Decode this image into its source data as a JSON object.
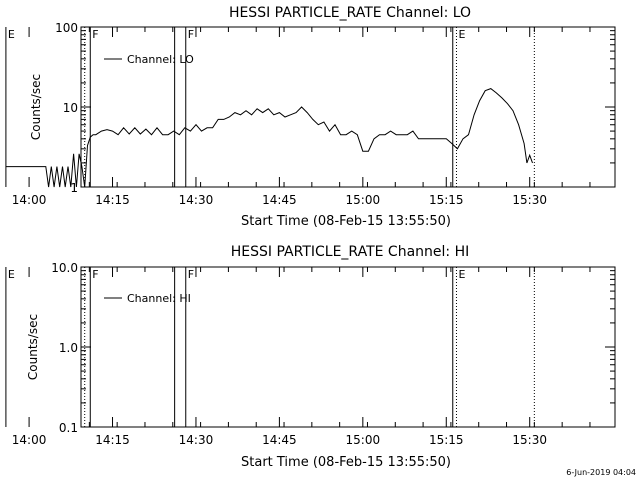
{
  "footer": {
    "timestamp": "6-Jun-2019 04:04"
  },
  "chart_data": [
    {
      "type": "line",
      "title": "HESSI PARTICLE_RATE Channel: LO",
      "xlabel": "Start Time (08-Feb-15 13:55:50)",
      "ylabel": "Counts/sec",
      "yscale": "log",
      "ylim": [
        1,
        100
      ],
      "xlim_minutes": [
        13.5,
        109.5
      ],
      "yticks": [
        {
          "value": 1,
          "label": "1"
        },
        {
          "value": 10,
          "label": "10"
        },
        {
          "value": 100,
          "label": "100"
        }
      ],
      "xticks": [
        {
          "label": "14:00"
        },
        {
          "label": "14:15"
        },
        {
          "label": "14:30"
        },
        {
          "label": "14:45"
        },
        {
          "label": "15:00"
        },
        {
          "label": "15:15"
        },
        {
          "label": "15:30"
        }
      ],
      "legend": {
        "label": "Channel: LO",
        "position": "top-left"
      },
      "markers": [
        {
          "time": "13:55:50",
          "label": "E",
          "style": "solid"
        },
        {
          "time": "14:10:00",
          "label": "",
          "style": "dotted"
        },
        {
          "time": "14:11:00",
          "label": "F",
          "style": "solid"
        },
        {
          "time": "14:26:10",
          "label": "",
          "style": "solid"
        },
        {
          "time": "14:28:10",
          "label": "F",
          "style": "solid"
        },
        {
          "time": "15:16:10",
          "label": "",
          "style": "solid"
        },
        {
          "time": "15:16:50",
          "label": "E",
          "style": "dotted"
        },
        {
          "time": "15:30:50",
          "label": "",
          "style": "dotted"
        }
      ],
      "series": [
        {
          "x": [
            "13:55:50",
            "14:00:00",
            "14:03:00",
            "14:03:30",
            "14:04:00",
            "14:04:30",
            "14:05:00",
            "14:05:30",
            "14:06:00",
            "14:06:30",
            "14:07:00",
            "14:07:30",
            "14:08:00",
            "14:08:30",
            "14:09:00",
            "14:09:30",
            "14:10:00",
            "14:10:30",
            "14:11:00",
            "14:11:30",
            "14:12:00",
            "14:13:00",
            "14:14:00",
            "14:15:00",
            "14:16:00",
            "14:17:00",
            "14:18:00",
            "14:19:00",
            "14:20:00",
            "14:21:00",
            "14:22:00",
            "14:23:00",
            "14:24:00",
            "14:25:00",
            "14:26:00",
            "14:27:00",
            "14:28:00",
            "14:29:00",
            "14:30:00",
            "14:31:00",
            "14:32:00",
            "14:33:00",
            "14:34:00",
            "14:35:00",
            "14:36:00",
            "14:37:00",
            "14:38:00",
            "14:39:00",
            "14:40:00",
            "14:41:00",
            "14:42:00",
            "14:43:00",
            "14:44:00",
            "14:45:00",
            "14:46:00",
            "14:47:00",
            "14:48:00",
            "14:49:00",
            "14:50:00",
            "14:51:00",
            "14:52:00",
            "14:53:00",
            "14:54:00",
            "14:55:00",
            "14:56:00",
            "14:57:00",
            "14:58:00",
            "14:59:00",
            "15:00:00",
            "15:01:00",
            "15:02:00",
            "15:03:00",
            "15:04:00",
            "15:05:00",
            "15:06:00",
            "15:07:00",
            "15:08:00",
            "15:09:00",
            "15:10:00",
            "15:11:00",
            "15:12:00",
            "15:13:00",
            "15:14:00",
            "15:15:00",
            "15:16:00",
            "15:17:00",
            "15:18:00",
            "15:19:00",
            "15:20:00",
            "15:21:00",
            "15:22:00",
            "15:23:00",
            "15:24:00",
            "15:25:00",
            "15:26:00",
            "15:27:00",
            "15:28:00",
            "15:29:00",
            "15:29:30",
            "15:30:00",
            "15:30:30"
          ],
          "y": [
            1.8,
            1.8,
            1.8,
            1.0,
            1.8,
            1.0,
            1.8,
            1.0,
            1.8,
            1.0,
            1.8,
            1.0,
            2.6,
            1.0,
            2.6,
            1.8,
            1.0,
            3.3,
            4.2,
            4.5,
            4.5,
            5.0,
            5.2,
            5.0,
            4.5,
            5.5,
            4.6,
            5.5,
            4.6,
            5.3,
            4.5,
            5.5,
            4.5,
            4.5,
            5.0,
            4.5,
            5.5,
            5.0,
            6.0,
            5.0,
            5.5,
            5.5,
            7.0,
            7.0,
            7.5,
            8.5,
            8.0,
            9.0,
            8.0,
            9.5,
            8.5,
            9.5,
            8.0,
            8.5,
            7.5,
            8.0,
            8.5,
            10.0,
            8.5,
            7.0,
            6.0,
            6.5,
            5.0,
            6.0,
            4.5,
            4.5,
            5.0,
            4.5,
            2.8,
            2.8,
            4.0,
            4.5,
            4.5,
            5.0,
            4.5,
            4.5,
            4.5,
            5.0,
            4.0,
            4.0,
            4.0,
            4.0,
            4.0,
            4.0,
            3.5,
            3.0,
            4.0,
            4.5,
            8.0,
            12.0,
            16.0,
            17.0,
            15.0,
            13.0,
            11.0,
            9.0,
            6.0,
            3.5,
            2.0,
            2.5,
            2.0
          ]
        }
      ]
    },
    {
      "type": "line",
      "title": "HESSI PARTICLE_RATE Channel: HI",
      "xlabel": "Start Time (08-Feb-15 13:55:50)",
      "ylabel": "Counts/sec",
      "yscale": "log",
      "ylim": [
        0.1,
        10
      ],
      "xlim_minutes": [
        13.5,
        109.5
      ],
      "yticks": [
        {
          "value": 0.1,
          "label": "0.1"
        },
        {
          "value": 1,
          "label": "1.0"
        },
        {
          "value": 10,
          "label": "10.0"
        }
      ],
      "xticks": [
        {
          "label": "14:00"
        },
        {
          "label": "14:15"
        },
        {
          "label": "14:30"
        },
        {
          "label": "14:45"
        },
        {
          "label": "15:00"
        },
        {
          "label": "15:15"
        },
        {
          "label": "15:30"
        }
      ],
      "legend": {
        "label": "Channel: HI",
        "position": "top-left"
      },
      "markers": [
        {
          "time": "13:55:50",
          "label": "E",
          "style": "solid"
        },
        {
          "time": "14:10:00",
          "label": "",
          "style": "dotted"
        },
        {
          "time": "14:11:00",
          "label": "F",
          "style": "solid"
        },
        {
          "time": "14:26:10",
          "label": "",
          "style": "solid"
        },
        {
          "time": "14:28:10",
          "label": "F",
          "style": "solid"
        },
        {
          "time": "15:16:10",
          "label": "",
          "style": "solid"
        },
        {
          "time": "15:16:50",
          "label": "E",
          "style": "dotted"
        },
        {
          "time": "15:30:50",
          "label": "",
          "style": "dotted"
        }
      ],
      "series": []
    }
  ]
}
